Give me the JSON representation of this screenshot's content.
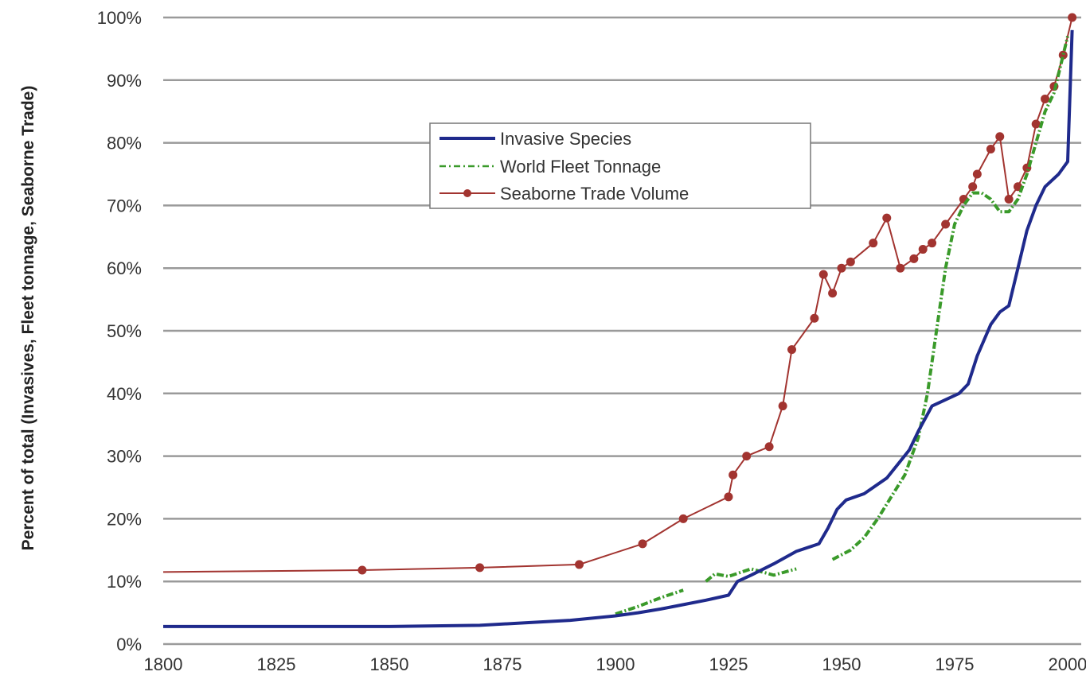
{
  "chart_data": {
    "type": "line",
    "title": "",
    "xlabel": "",
    "ylabel": "Percent of total (Invasives, Fleet tonnage, Seaborne Trade)",
    "xlim": [
      1800,
      2003
    ],
    "ylim": [
      0,
      100
    ],
    "x_ticks": [
      "1800",
      "1825",
      "1850",
      "1875",
      "1900",
      "1925",
      "1950",
      "1975",
      "2000"
    ],
    "y_ticks": [
      "0%",
      "10%",
      "20%",
      "30%",
      "40%",
      "50%",
      "60%",
      "70%",
      "80%",
      "90%",
      "100%"
    ],
    "grid": "horizontal",
    "legend_position": "top-center",
    "series": [
      {
        "name": "Invasive Species",
        "color": "#1f2a8c",
        "style": "solid",
        "x": [
          1800,
          1850,
          1870,
          1880,
          1890,
          1900,
          1905,
          1910,
          1915,
          1920,
          1925,
          1927,
          1930,
          1935,
          1940,
          1945,
          1947,
          1949,
          1951,
          1955,
          1960,
          1965,
          1967,
          1970,
          1973,
          1976,
          1978,
          1980,
          1983,
          1985,
          1987,
          1989,
          1991,
          1993,
          1995,
          1998,
          2000,
          2001
        ],
        "values": [
          2.8,
          2.8,
          3.0,
          3.4,
          3.8,
          4.5,
          5.0,
          5.6,
          6.3,
          7.0,
          7.8,
          10.0,
          11.0,
          12.8,
          14.8,
          16.0,
          18.5,
          21.5,
          23.0,
          24.0,
          26.5,
          31.0,
          34.0,
          38.0,
          39.0,
          40.0,
          41.5,
          46.0,
          51.0,
          53.0,
          54.0,
          60.0,
          66.0,
          70.0,
          73.0,
          75.0,
          77.0,
          98.0
        ]
      },
      {
        "name": "World Fleet Tonnage",
        "color": "#3a9a2a",
        "style": "dash-dot",
        "segments": [
          {
            "x": [
              1900,
              1905,
              1910,
              1915
            ],
            "values": [
              4.8,
              6.0,
              7.4,
              8.6
            ]
          },
          {
            "x": [
              1920,
              1922,
              1925,
              1930,
              1935,
              1940
            ],
            "values": [
              10.0,
              11.2,
              10.8,
              12.0,
              11.0,
              12.0
            ]
          },
          {
            "x": [
              1948,
              1952,
              1955,
              1958,
              1961,
              1964,
              1967,
              1969,
              1971,
              1973,
              1975,
              1977,
              1979,
              1981,
              1983,
              1985,
              1987,
              1989,
              1991,
              1993,
              1995,
              1997,
              2000
            ],
            "values": [
              13.5,
              15.0,
              17.0,
              20.0,
              23.5,
              27.0,
              33.0,
              40.0,
              50.0,
              60.0,
              67.0,
              70.0,
              72.0,
              72.0,
              71.0,
              69.0,
              69.0,
              71.0,
              75.0,
              80.0,
              85.0,
              88.0,
              97.0
            ]
          }
        ]
      },
      {
        "name": "Seaborne Trade Volume",
        "color": "#a23430",
        "style": "solid-with-markers",
        "x": [
          1800,
          1844,
          1870,
          1892,
          1906,
          1915,
          1925,
          1926,
          1929,
          1934,
          1937,
          1939,
          1944,
          1946,
          1948,
          1950,
          1952,
          1957,
          1960,
          1963,
          1966,
          1968,
          1970,
          1973,
          1977,
          1979,
          1980,
          1983,
          1985,
          1987,
          1989,
          1991,
          1993,
          1995,
          1997,
          1999,
          2001
        ],
        "values": [
          11.5,
          11.8,
          12.2,
          12.7,
          16.0,
          20.0,
          23.5,
          27.0,
          30.0,
          31.5,
          38.0,
          47.0,
          52.0,
          59.0,
          56.0,
          60.0,
          61.0,
          64.0,
          68.0,
          60.0,
          61.5,
          63.0,
          64.0,
          67.0,
          71.0,
          73.0,
          75.0,
          79.0,
          81.0,
          71.0,
          73.0,
          76.0,
          83.0,
          87.0,
          89.0,
          94.0,
          100.0
        ]
      }
    ]
  }
}
